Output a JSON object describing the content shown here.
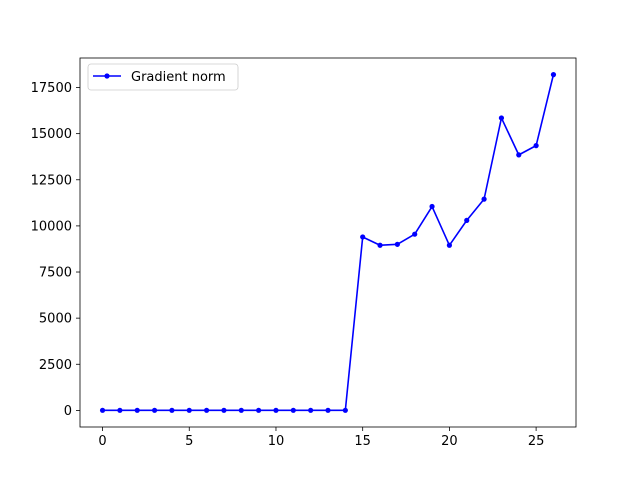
{
  "chart_data": {
    "type": "line",
    "title": "",
    "xlabel": "",
    "ylabel": "",
    "xlim": [
      -1.3,
      27.3
    ],
    "ylim": [
      -900,
      19100
    ],
    "x_ticks": [
      0,
      5,
      10,
      15,
      20,
      25
    ],
    "y_ticks": [
      0,
      2500,
      5000,
      7500,
      10000,
      12500,
      15000,
      17500
    ],
    "grid": false,
    "legend_position": "upper-left",
    "series": [
      {
        "name": "Gradient norm",
        "color": "#0000ff",
        "marker": "dot",
        "x": [
          0,
          1,
          2,
          3,
          4,
          5,
          6,
          7,
          8,
          9,
          10,
          11,
          12,
          13,
          14,
          15,
          16,
          17,
          18,
          19,
          20,
          21,
          22,
          23,
          24,
          25,
          26
        ],
        "y": [
          5,
          5,
          5,
          5,
          5,
          5,
          5,
          5,
          5,
          5,
          5,
          5,
          5,
          5,
          5,
          9400,
          8950,
          9000,
          9550,
          11050,
          8950,
          10300,
          11450,
          15850,
          13850,
          14350,
          18200
        ]
      }
    ]
  }
}
